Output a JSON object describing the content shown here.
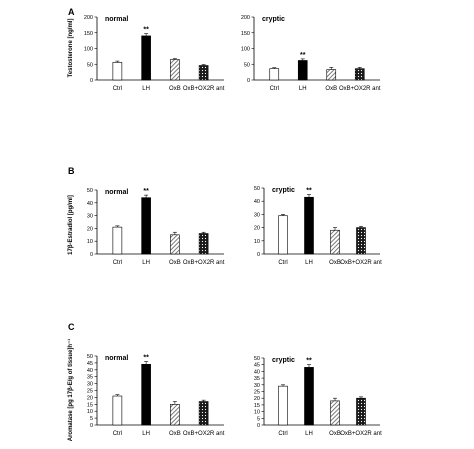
{
  "panels": [
    {
      "letter": "A",
      "ylabel": "Testosterone [ng/ml]"
    },
    {
      "letter": "B",
      "ylabel": "17β-Estradiol [pg/ml]"
    },
    {
      "letter": "C",
      "ylabel": "Aromatase [pg 17β-E/g of tissue]h⁻¹"
    }
  ],
  "chart_data": [
    {
      "type": "bar",
      "panel": "A",
      "group_label": "normal",
      "categories": [
        "Ctrl",
        "LH",
        "OxB",
        "OxB+OX2R ant"
      ],
      "values": [
        56,
        140,
        65,
        46
      ],
      "errors": [
        4,
        7,
        3,
        3
      ],
      "sig": [
        "",
        "**",
        "",
        ""
      ],
      "ylim": [
        0,
        200
      ],
      "yticks": [
        0,
        50,
        100,
        150,
        200
      ]
    },
    {
      "type": "bar",
      "panel": "A",
      "group_label": "cryptic",
      "categories": [
        "Ctrl",
        "LH",
        "OxB",
        "OxB+OX2R ant"
      ],
      "values": [
        36,
        62,
        33,
        36
      ],
      "errors": [
        3,
        5,
        7,
        4
      ],
      "sig": [
        "",
        "**",
        "",
        ""
      ],
      "ylim": [
        0,
        200
      ],
      "yticks": [
        0,
        50,
        100,
        150,
        200
      ]
    },
    {
      "type": "bar",
      "panel": "B",
      "group_label": "normal",
      "categories": [
        "Ctrl",
        "LH",
        "OxB",
        "OxB+OX2R ant"
      ],
      "values": [
        21,
        44,
        15,
        16
      ],
      "errors": [
        1,
        2,
        2,
        1
      ],
      "sig": [
        "",
        "**",
        "",
        ""
      ],
      "ylim": [
        0,
        50
      ],
      "yticks": [
        0,
        10,
        20,
        30,
        40,
        50
      ]
    },
    {
      "type": "bar",
      "panel": "B",
      "group_label": "cryptic",
      "categories": [
        "Ctrl",
        "LH",
        "OxB",
        "OxB+OX2R ant"
      ],
      "values": [
        29,
        43,
        18,
        20
      ],
      "errors": [
        1,
        2,
        2,
        1
      ],
      "sig": [
        "",
        "**",
        "",
        ""
      ],
      "ylim": [
        0,
        50
      ],
      "yticks": [
        0,
        10,
        20,
        30,
        40,
        50
      ]
    },
    {
      "type": "bar",
      "panel": "C",
      "group_label": "normal",
      "categories": [
        "Ctrl",
        "LH",
        "OxB",
        "OxB+OX2R ant"
      ],
      "values": [
        21,
        44,
        15,
        17
      ],
      "errors": [
        1,
        2,
        2,
        1
      ],
      "sig": [
        "",
        "**",
        "",
        ""
      ],
      "ylim": [
        0,
        50
      ],
      "yticks": [
        0,
        5,
        10,
        15,
        20,
        25,
        30,
        35,
        40,
        45,
        50
      ]
    },
    {
      "type": "bar",
      "panel": "C",
      "group_label": "cryptic",
      "categories": [
        "Ctrl",
        "LH",
        "OxB",
        "OxB+OX2R ant"
      ],
      "values": [
        29,
        43,
        18,
        20
      ],
      "errors": [
        1,
        2,
        2,
        1
      ],
      "sig": [
        "",
        "**",
        "",
        ""
      ],
      "ylim": [
        0,
        50
      ],
      "yticks": [
        0,
        5,
        10,
        15,
        20,
        25,
        30,
        35,
        40,
        45,
        50
      ]
    }
  ],
  "bar_styles": [
    "open",
    "solid",
    "hatched",
    "dotted"
  ],
  "colors": {
    "ink": "#000000",
    "hatch": "#7a7a7a",
    "paper": "#ffffff"
  }
}
